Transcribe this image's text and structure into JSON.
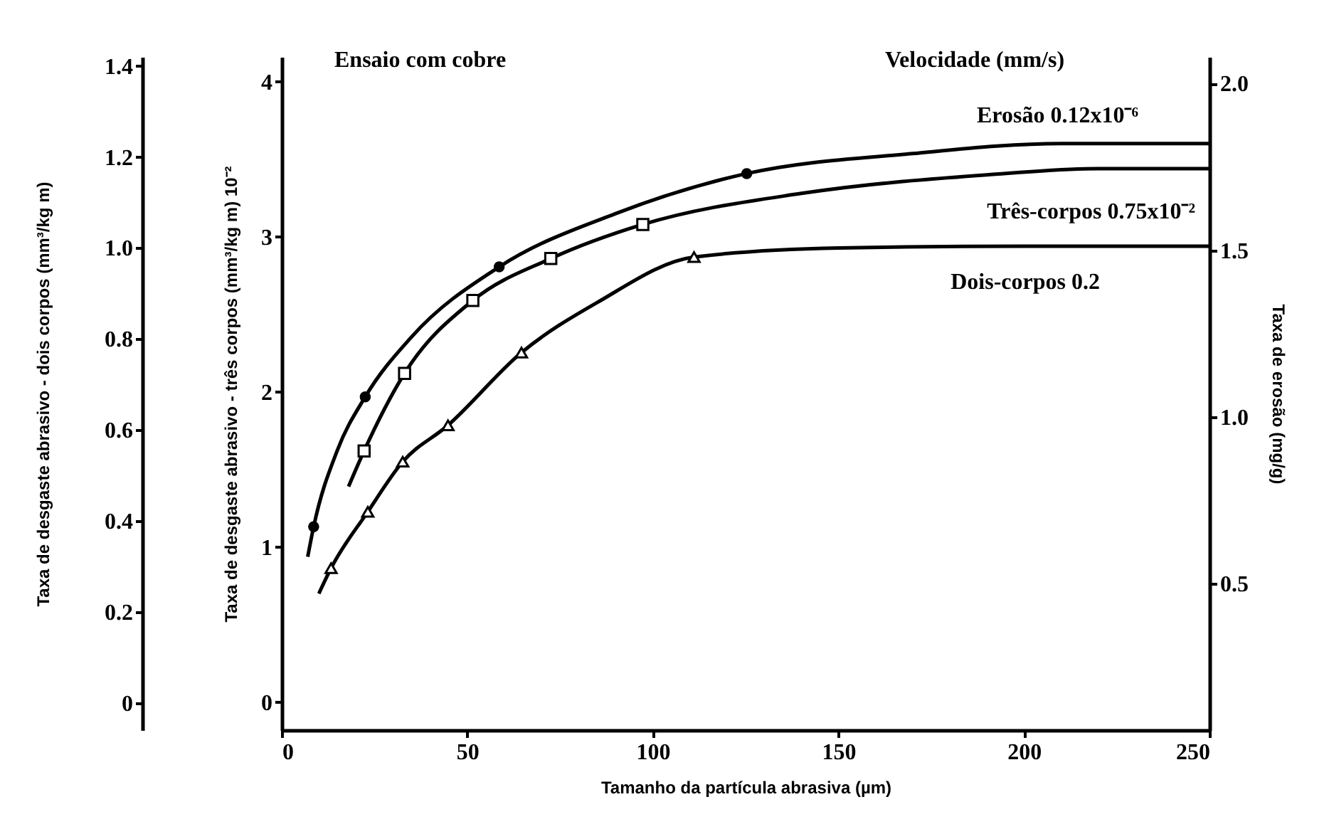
{
  "chart_data": {
    "type": "line",
    "xlabel": "Tamanho da partícula abrasiva (µm)",
    "ylabel": "Taxa de desgaste abrasivo - três corpos (mm³/kg m) 10⁻²",
    "y2label": "Taxa de erosão (mg/g)",
    "y3label": "Taxa de desgaste abrasivo - dois corpos (mm³/kg m)",
    "xlim": [
      0,
      250
    ],
    "xticks": [
      0,
      50,
      100,
      150,
      200,
      250
    ],
    "ylim": [
      -0.18,
      4.16
    ],
    "yticks": [
      0,
      1,
      2,
      3,
      4
    ],
    "y2lim": [
      0.06,
      2.08
    ],
    "y2ticks": [
      0.5,
      {
        "value": 1,
        "label": "1.0"
      },
      1.5,
      {
        "value": 2,
        "label": "2.0"
      }
    ],
    "y3lim": [
      -0.06,
      1.42
    ],
    "y3ticks": [
      0,
      0.2,
      0.4,
      0.6,
      0.8,
      {
        "value": 1,
        "label": "1.0"
      },
      1.2,
      1.4
    ],
    "annotations": [
      "Ensaio com cobre",
      "Velocidade (mm/s)"
    ],
    "grid": false,
    "line_style": "solid",
    "series": [
      {
        "axis": "y2",
        "name": "Erosão 0.12x10⁻⁶",
        "color": "#000000",
        "x": [
          7,
          8.6,
          15,
          22.5,
          35,
          58.6,
          90,
          125.3,
          170,
          210,
          250
        ],
        "values": [
          0.58,
          0.67,
          0.9,
          1.06,
          1.24,
          1.45,
          1.61,
          1.73,
          1.79,
          1.82,
          1.82
        ]
      },
      {
        "axis": "y",
        "name": "Três-corpos 0.75x10⁻²",
        "color": "#000000",
        "x": [
          18,
          22.2,
          33.1,
          51.5,
          72.5,
          97.3,
          140,
          190,
          220,
          250
        ],
        "values": [
          1.39,
          1.62,
          2.12,
          2.59,
          2.86,
          3.08,
          3.28,
          3.4,
          3.44,
          3.44
        ]
      },
      {
        "axis": "y3",
        "name": "Dois-corpos 0.2",
        "color": "#000000",
        "x": [
          10,
          13.3,
          23.2,
          32.6,
          44.8,
          64.6,
          85,
          111.1,
          150,
          200,
          250
        ],
        "values": [
          0.24,
          0.296,
          0.42,
          0.53,
          0.61,
          0.77,
          0.88,
          0.98,
          1.0,
          1.004,
          1.004
        ]
      },
      {
        "type": "scatter",
        "axis": "y2",
        "marker": "circle",
        "color": "#000000",
        "x": [
          8.6,
          22.5,
          58.6,
          125.3
        ],
        "values": [
          0.67,
          1.06,
          1.45,
          1.73
        ]
      },
      {
        "type": "scatter",
        "axis": "y",
        "marker": "square",
        "color": "#000000",
        "x": [
          22.2,
          33.1,
          51.5,
          72.5,
          97.3
        ],
        "values": [
          1.62,
          2.12,
          2.59,
          2.86,
          3.08
        ]
      },
      {
        "type": "scatter",
        "axis": "y3",
        "marker": "triangle",
        "color": "#000000",
        "x": [
          13.3,
          23.2,
          32.6,
          44.8,
          64.6,
          111.1
        ],
        "values": [
          0.296,
          0.42,
          0.53,
          0.61,
          0.77,
          0.98
        ]
      }
    ]
  }
}
